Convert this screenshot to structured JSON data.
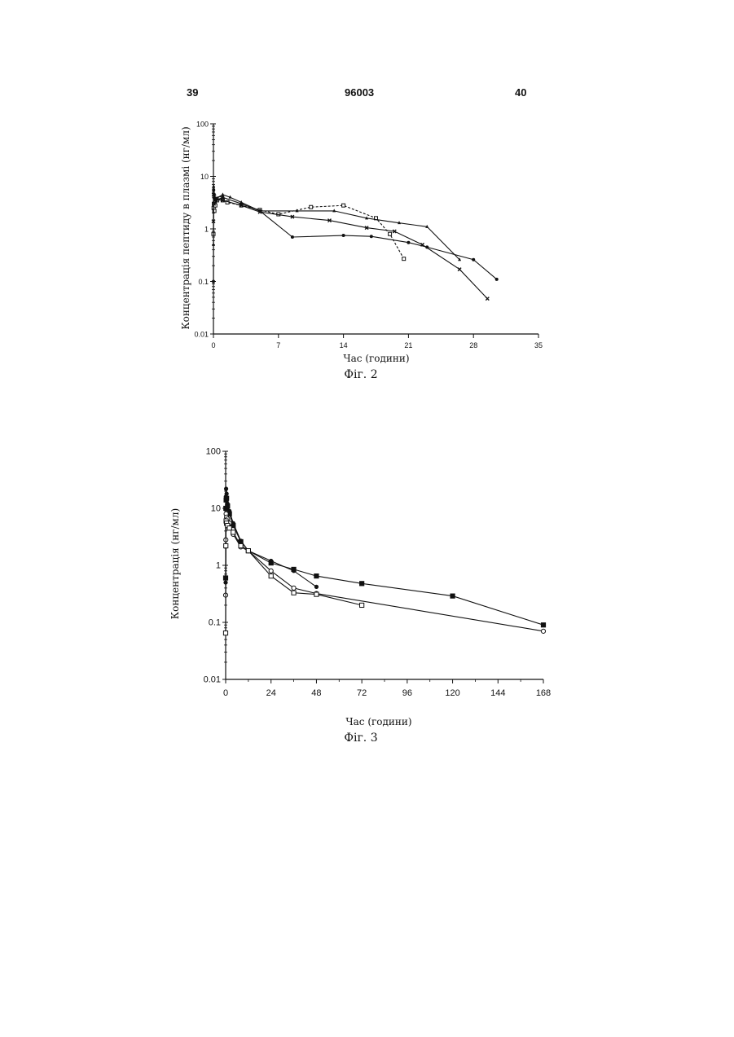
{
  "header": {
    "left": "39",
    "center": "96003",
    "right": "40"
  },
  "chart_data": [
    {
      "type": "line",
      "caption": "Фіг. 2",
      "xlabel": "Час (години)",
      "ylabel": "Концентрація пептиду в плазмі (нг/мл)",
      "ylog": true,
      "ylim": [
        0.01,
        100
      ],
      "xlim": [
        0,
        35
      ],
      "xticks": [
        "0",
        "7",
        "14",
        "21",
        "28",
        "35"
      ],
      "yticks": [
        "0.01",
        "0.1",
        "1",
        "10",
        "100"
      ],
      "series": [
        {
          "marker": "square",
          "dashed": true,
          "x": [
            0,
            0.02,
            0.05,
            0.1,
            0.2,
            0.4,
            0.7,
            1.0,
            1.5,
            3,
            5,
            7,
            10.5,
            14,
            17.5,
            19,
            20.5
          ],
          "y": [
            0.8,
            2.5,
            3.0,
            2.2,
            2.8,
            3.5,
            3.8,
            3.5,
            3.2,
            2.8,
            2.3,
            1.9,
            2.6,
            2.8,
            1.6,
            0.8,
            0.27
          ]
        },
        {
          "marker": "circle",
          "dashed": false,
          "x": [
            0,
            0.02,
            0.05,
            0.1,
            0.3,
            1.0,
            3,
            5,
            8.5,
            14,
            17,
            21,
            23,
            28,
            30.5
          ],
          "y": [
            0.1,
            5.5,
            4.5,
            3.8,
            3.5,
            4.0,
            3.0,
            2.2,
            0.7,
            0.75,
            0.72,
            0.55,
            0.45,
            0.26,
            0.11
          ]
        },
        {
          "marker": "triangle",
          "dashed": false,
          "x": [
            0,
            0.02,
            0.05,
            0.1,
            0.3,
            1.0,
            1.8,
            3,
            5,
            9,
            13,
            16.5,
            20,
            23,
            26.5
          ],
          "y": [
            0.5,
            6.5,
            4.0,
            3.5,
            3.8,
            4.5,
            4.0,
            3.2,
            2.2,
            2.2,
            2.2,
            1.6,
            1.3,
            1.1,
            0.26
          ]
        },
        {
          "marker": "x",
          "dashed": false,
          "x": [
            0,
            0.02,
            0.05,
            0.1,
            0.3,
            1.0,
            3,
            5,
            8.5,
            12.5,
            16.5,
            19.5,
            22.5,
            26.5,
            29.5
          ],
          "y": [
            1.4,
            4.5,
            3.0,
            4.2,
            3.8,
            3.5,
            2.8,
            2.1,
            1.7,
            1.45,
            1.05,
            0.9,
            0.5,
            0.17,
            0.047
          ]
        }
      ]
    },
    {
      "type": "line",
      "caption": "Фіг. 3",
      "xlabel": "Час (години)",
      "ylabel": "Концентрація  (нг/мл)",
      "ylog": true,
      "ylim": [
        0.01,
        100
      ],
      "xlim": [
        0,
        168
      ],
      "xticks": [
        "0",
        "24",
        "48",
        "72",
        "96",
        "120",
        "144",
        "168"
      ],
      "yticks": [
        "0.01",
        "0.1",
        "1",
        "10",
        "100"
      ],
      "series": [
        {
          "marker": "filled-circle",
          "dashed": false,
          "x": [
            0,
            0.1,
            0.25,
            0.5,
            1,
            2,
            4,
            8,
            12,
            24,
            36,
            48
          ],
          "y": [
            0.5,
            16,
            22,
            18,
            12,
            9,
            5.5,
            2.7,
            1.8,
            1.2,
            0.8,
            0.42
          ]
        },
        {
          "marker": "filled-square",
          "dashed": false,
          "x": [
            0,
            0.1,
            0.25,
            0.5,
            1,
            2,
            4,
            8,
            12,
            24,
            36,
            48,
            72,
            120,
            168
          ],
          "y": [
            0.6,
            10,
            14,
            15,
            11,
            8,
            5.0,
            2.6,
            1.8,
            1.1,
            0.85,
            0.65,
            0.48,
            0.29,
            0.09
          ]
        },
        {
          "marker": "open-circle",
          "dashed": false,
          "x": [
            0,
            0.1,
            0.25,
            0.5,
            1,
            2,
            4,
            8,
            12,
            24,
            36,
            48,
            168
          ],
          "y": [
            0.3,
            2.8,
            8,
            7,
            6.5,
            5.5,
            3.5,
            2.1,
            1.8,
            0.8,
            0.4,
            0.32,
            0.07
          ]
        },
        {
          "marker": "open-square",
          "dashed": false,
          "x": [
            0,
            0.1,
            0.25,
            0.5,
            1,
            2,
            4,
            8,
            12,
            24,
            36,
            48,
            72
          ],
          "y": [
            0.065,
            2.2,
            6,
            5.5,
            5.0,
            4.5,
            3.8,
            2.2,
            1.8,
            0.65,
            0.33,
            0.31,
            0.2
          ]
        }
      ]
    }
  ]
}
